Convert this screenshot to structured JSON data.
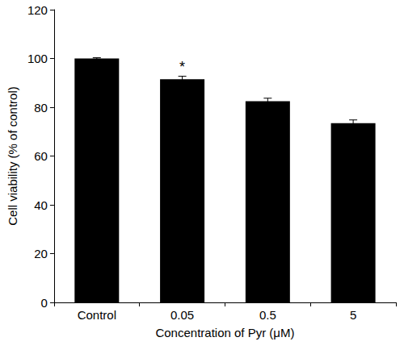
{
  "chart_data": {
    "type": "bar",
    "x_label": "Concentration of Pyr (μM)",
    "y_label": "Cell viability (% of control)",
    "categories": [
      "Control",
      "0.05",
      "0.5",
      "5"
    ],
    "values": [
      100,
      91.5,
      82.5,
      73.5
    ],
    "errors": [
      0.3,
      1.2,
      1.2,
      1.3
    ],
    "annotations": [
      {
        "text": "*",
        "category": "0.05"
      }
    ],
    "color": "#000000",
    "ylim": [
      0,
      120
    ],
    "yticks": [
      0,
      20,
      40,
      60,
      80,
      100,
      120
    ],
    "grid": false
  }
}
